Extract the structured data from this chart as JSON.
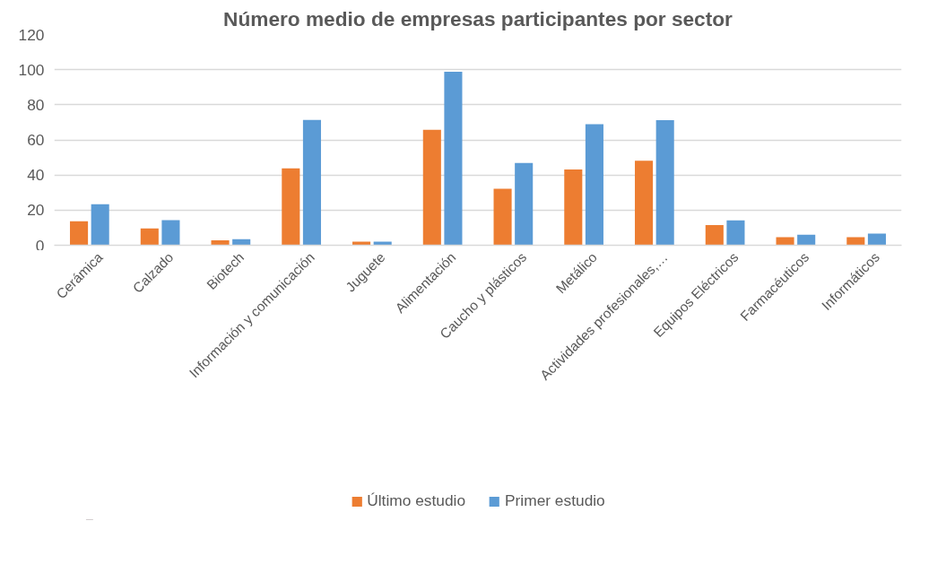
{
  "chart_data": {
    "type": "bar",
    "title": "Número medio de empresas participantes por sector",
    "categories": [
      "Cerámica",
      "Calzado",
      "Biotech",
      "Información y comunicación",
      "Juguete",
      "Alimentación",
      "Caucho y plásticos",
      "Metálico",
      "Actividades profesionales,…",
      "Equipos Eléctricos",
      "Farmacéuticos",
      "Informáticos"
    ],
    "series": [
      {
        "name": "Último estudio",
        "color": "#ed7d31",
        "values": [
          13.6,
          9.6,
          2.8,
          43.8,
          2.1,
          65.7,
          32.2,
          43.2,
          48.1,
          11.5,
          4.6,
          4.6
        ]
      },
      {
        "name": "Primer estudio",
        "color": "#5b9bd5",
        "values": [
          23.3,
          14.3,
          3.5,
          71.3,
          2.1,
          98.8,
          46.9,
          69.0,
          71.2,
          14.2,
          6.0,
          6.7
        ]
      }
    ],
    "ylim": [
      0,
      120
    ],
    "yticks": [
      0,
      20,
      40,
      60,
      80,
      100,
      120
    ],
    "grid": "y",
    "legend": "bottom"
  }
}
